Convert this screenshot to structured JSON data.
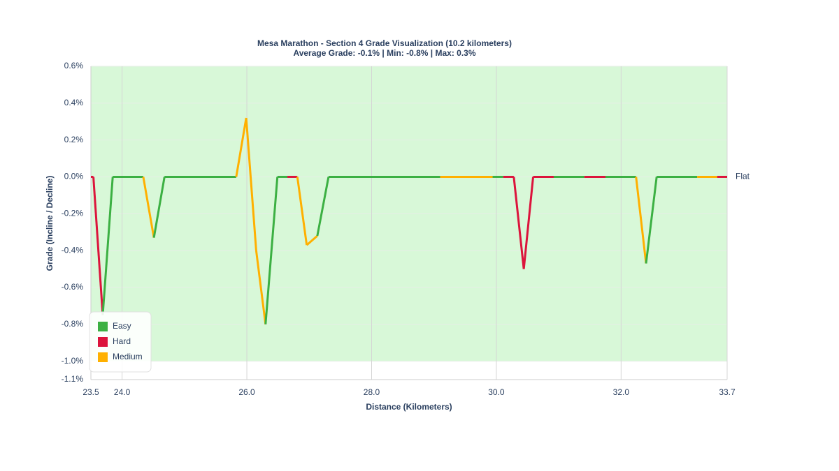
{
  "chart_data": {
    "type": "line",
    "title": "Mesa Marathon - Section 4 Grade Visualization (10.2 kilometers)",
    "subtitle": "Average Grade: -0.1% | Min: -0.8% | Max: 0.3%",
    "x_label": "Distance (Kilometers)",
    "y_label": "Grade (Incline / Decline)",
    "x": [
      23.5,
      23.54,
      23.69,
      23.85,
      24.34,
      24.51,
      24.68,
      25.83,
      25.99,
      26.15,
      26.3,
      26.49,
      26.65,
      26.81,
      26.96,
      27.13,
      27.31,
      29.1,
      29.94,
      30.11,
      30.28,
      30.44,
      30.59,
      30.92,
      31.41,
      31.75,
      32.24,
      32.4,
      32.57,
      33.22,
      33.54,
      33.7
    ],
    "values": [
      0,
      0,
      -0.75,
      0,
      0,
      -0.33,
      0,
      0,
      0.32,
      -0.4,
      -0.8,
      0,
      0,
      0,
      -0.37,
      -0.32,
      0,
      0,
      0,
      0,
      0,
      -0.5,
      0,
      0,
      0,
      0,
      0,
      -0.47,
      0,
      0,
      0,
      0
    ],
    "segment_difficulty": [
      "Hard",
      "Hard",
      "Easy",
      "Easy",
      "Medium",
      "Easy",
      "Easy",
      "Medium",
      "Medium",
      "Medium",
      "Easy",
      "Easy",
      "Hard",
      "Medium",
      "Medium",
      "Easy",
      "Easy",
      "Medium",
      "Easy",
      "Hard",
      "Hard",
      "Hard",
      "Hard",
      "Easy",
      "Hard",
      "Easy",
      "Medium",
      "Easy",
      "Easy",
      "Medium",
      "Hard"
    ],
    "series": [
      {
        "name": "Easy",
        "color": "#3cb043"
      },
      {
        "name": "Hard",
        "color": "#dc143c"
      },
      {
        "name": "Medium",
        "color": "#ffb000"
      }
    ],
    "shaded_range": [
      -1.0,
      0.6
    ],
    "shaded_color": "#d8f8d8",
    "annotation": {
      "text": "Flat",
      "y": 0
    },
    "xlim": [
      23.5,
      33.7
    ],
    "xticks": [
      23.5,
      {
        "value": 24,
        "label": "24.0"
      },
      {
        "value": 26,
        "label": "26.0"
      },
      {
        "value": 28,
        "label": "28.0"
      },
      {
        "value": 30,
        "label": "30.0"
      },
      {
        "value": 32,
        "label": "32.0"
      },
      33.7
    ],
    "ylim": [
      -1.1,
      0.6
    ],
    "yticks": [
      {
        "value": 0.6,
        "label": "0.6%"
      },
      {
        "value": 0.4,
        "label": "0.4%"
      },
      {
        "value": 0.2,
        "label": "0.2%"
      },
      {
        "value": 0,
        "label": "0.0%"
      },
      {
        "value": -0.2,
        "label": "-0.2%"
      },
      {
        "value": -0.4,
        "label": "-0.4%"
      },
      {
        "value": -0.6,
        "label": "-0.6%"
      },
      {
        "value": -0.8,
        "label": "-0.8%"
      },
      {
        "value": -1.0,
        "label": "-1.0%"
      },
      {
        "value": -1.1,
        "label": "-1.1%"
      }
    ],
    "grid": true,
    "legend": "lower left"
  }
}
